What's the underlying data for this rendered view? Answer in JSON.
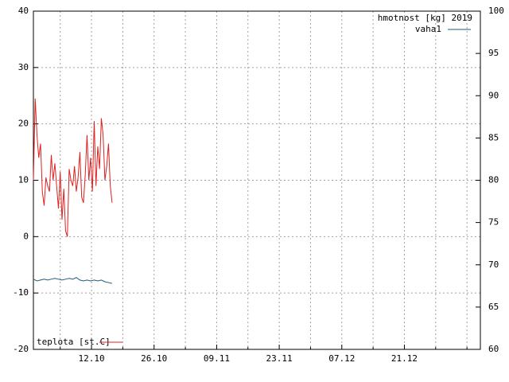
{
  "chart_data": {
    "type": "line",
    "key_title": "hmotnost [kg] 2019",
    "xlim": [
      272,
      372
    ],
    "xticks": [
      {
        "value": 278,
        "label": null
      },
      {
        "value": 285,
        "label": "12.10"
      },
      {
        "value": 292,
        "label": null
      },
      {
        "value": 299,
        "label": "26.10"
      },
      {
        "value": 306,
        "label": null
      },
      {
        "value": 313,
        "label": "09.11"
      },
      {
        "value": 320,
        "label": null
      },
      {
        "value": 327,
        "label": "23.11"
      },
      {
        "value": 334,
        "label": null
      },
      {
        "value": 341,
        "label": "07.12"
      },
      {
        "value": 348,
        "label": null
      },
      {
        "value": 355,
        "label": "21.12"
      },
      {
        "value": 362,
        "label": null
      },
      {
        "value": 369,
        "label": null
      }
    ],
    "ylim": [
      -20,
      40
    ],
    "yticks": [
      -20,
      -10,
      0,
      10,
      20,
      30,
      40
    ],
    "y2lim": [
      60,
      100
    ],
    "y2ticks": [
      60,
      65,
      70,
      75,
      80,
      85,
      90,
      95,
      100
    ],
    "grid": true,
    "series": [
      {
        "name": "vaha1",
        "color": "#1f5a7a",
        "axis": "y2",
        "legend": "top right",
        "x": [
          272,
          272.8,
          273.6,
          274.4,
          275.2,
          276,
          276.8,
          277.6,
          278.4,
          279.2,
          280,
          280.8,
          281.6,
          282.4,
          283.2,
          284,
          284.8,
          285.6,
          286.4,
          287.2,
          288,
          288.8,
          289.6
        ],
        "values": [
          68.3,
          68.1,
          68.2,
          68.3,
          68.2,
          68.3,
          68.4,
          68.3,
          68.2,
          68.3,
          68.4,
          68.3,
          68.5,
          68.2,
          68.1,
          68.2,
          68.1,
          68.2,
          68.1,
          68.2,
          68.0,
          67.9,
          67.8
        ]
      },
      {
        "name": "teplota [st.C]",
        "color": "#e02020",
        "axis": "y",
        "legend": "bottom left",
        "x": [
          272,
          272.4,
          272.8,
          273.2,
          273.6,
          274,
          274.4,
          274.8,
          275.2,
          275.6,
          276,
          276.4,
          276.8,
          277.2,
          277.6,
          278,
          278.4,
          278.8,
          279.2,
          279.6,
          280,
          280.4,
          280.8,
          281.2,
          281.6,
          282,
          282.4,
          282.8,
          283.2,
          283.6,
          284,
          284.4,
          284.8,
          285.2,
          285.6,
          286,
          286.4,
          286.8,
          287.2,
          287.6,
          288,
          288.4,
          288.8,
          289.2,
          289.6
        ],
        "values": [
          10,
          24.5,
          18,
          14,
          16.5,
          8,
          5.5,
          10.5,
          9,
          8,
          14.5,
          10,
          13,
          9,
          5,
          11.5,
          3,
          8.5,
          1,
          0,
          12,
          10,
          9,
          12.5,
          8,
          10.5,
          15,
          7,
          6,
          11,
          18,
          10,
          14,
          8,
          20.5,
          9,
          16,
          12,
          21,
          18,
          10,
          12.5,
          16.5,
          9,
          6
        ]
      }
    ]
  }
}
